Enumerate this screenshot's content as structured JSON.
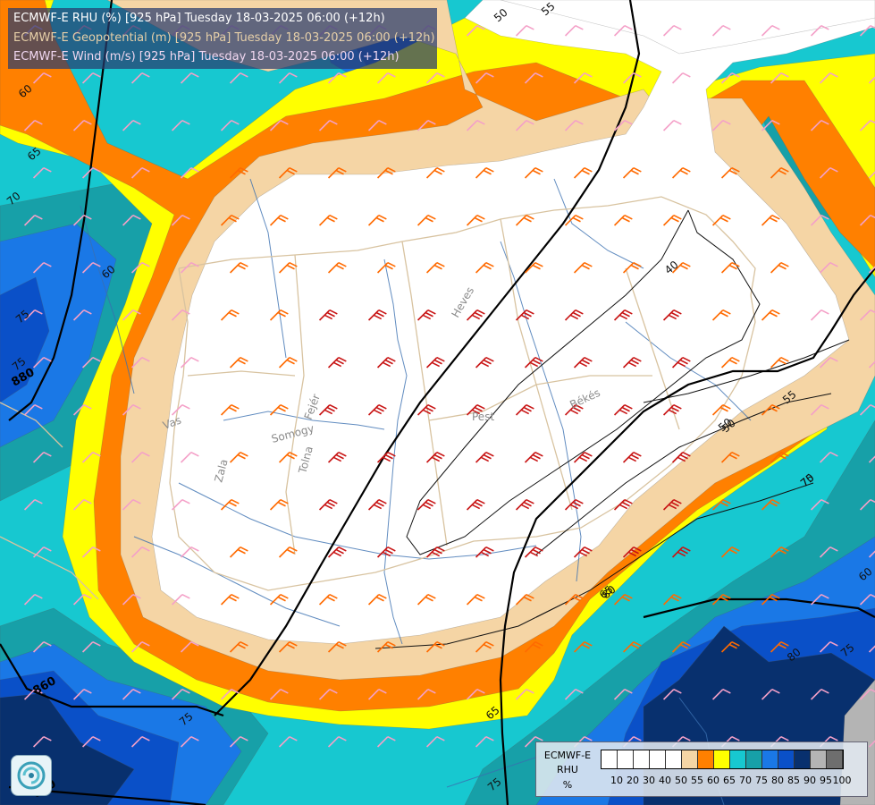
{
  "titles": [
    {
      "text": "ECMWF-E RHU (%) [925 hPa] Tuesday 18-03-2025 06:00 (+12h)",
      "color": "#ffffff"
    },
    {
      "text": "ECMWF-E Geopotential (m) [925 hPa] Tuesday 18-03-2025 06:00 (+12h)",
      "color": "#e6cfa8"
    },
    {
      "text": "ECMWF-E Wind (m/s) [925 hPa] Tuesday 18-03-2025 06:00 (+12h)",
      "color": "#f0d7f0"
    }
  ],
  "legend": {
    "title_lines": [
      "ECMWF-E",
      "RHU",
      "%"
    ],
    "levels": [
      "10",
      "20",
      "30",
      "40",
      "50",
      "55",
      "60",
      "65",
      "70",
      "75",
      "80",
      "85",
      "90",
      "95",
      "100"
    ],
    "colors": [
      "#ffffff",
      "#ffffff",
      "#ffffff",
      "#ffffff",
      "#ffffff",
      "#f5d5a5",
      "#ff8000",
      "#ffff00",
      "#17c8d0",
      "#17a0a8",
      "#1a78e6",
      "#0a50c8",
      "#08306e",
      "#b4b4b4",
      "#6e6e6e"
    ]
  },
  "rhu_contour_labels": [
    "50",
    "55",
    "60",
    "65",
    "70",
    "75",
    "60",
    "75",
    "55",
    "50",
    "70",
    "75",
    "80",
    "60",
    "75",
    "65",
    "75",
    "80",
    "40",
    "50",
    "75",
    "65"
  ],
  "geopotential_labels": [
    "880",
    "860",
    "840"
  ],
  "place_labels": [
    "Heves",
    "Pest",
    "Békés",
    "Vas",
    "Somogy",
    "Fejér",
    "Zala",
    "Tolna"
  ],
  "colors": {
    "rhu_white": "#ffffff",
    "rhu_55": "#f5d5a5",
    "rhu_60": "#ff8000",
    "rhu_65": "#ffff00",
    "rhu_70": "#17c8d0",
    "rhu_75": "#17a0a8",
    "rhu_80": "#1a78e6",
    "rhu_85": "#0a50c8",
    "rhu_90": "#08306e",
    "rhu_95": "#b4b4b4",
    "geopotential_line": "#000000",
    "wind_weak": "#f4a0c8",
    "wind_medium": "#ff6a00",
    "wind_strong": "#c81414",
    "river": "#3a6fb0",
    "border": "#d8c3a0"
  },
  "icons": {
    "logo": "ecmwf-logo-icon"
  }
}
